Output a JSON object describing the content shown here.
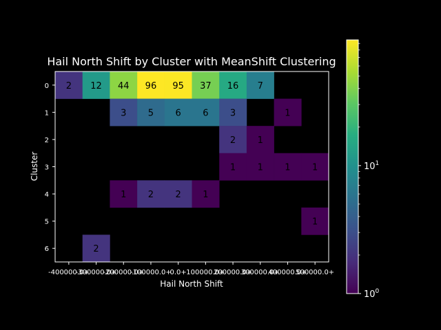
{
  "chart_data": {
    "type": "heatmap",
    "title": "Hail North Shift by Cluster with MeanShift Clustering",
    "xlabel": "Hail North Shift",
    "ylabel": "Cluster",
    "x_tick_labels": [
      "-400000.0+",
      "-300000.0+",
      "-200000.0+",
      "-100000.0+",
      "0.0+",
      "100000.0+",
      "200000.0+",
      "300000.0+",
      "400000.0+",
      "500000.0+"
    ],
    "y_tick_labels": [
      "0",
      "1",
      "2",
      "3",
      "4",
      "5",
      "6"
    ],
    "values": [
      [
        2,
        12,
        44,
        96,
        95,
        37,
        16,
        7,
        null,
        null
      ],
      [
        null,
        null,
        3,
        5,
        6,
        6,
        3,
        null,
        1,
        null
      ],
      [
        null,
        null,
        null,
        null,
        null,
        null,
        2,
        1,
        null,
        null
      ],
      [
        null,
        null,
        null,
        null,
        null,
        null,
        1,
        1,
        1,
        1
      ],
      [
        null,
        null,
        1,
        2,
        2,
        1,
        null,
        null,
        null,
        null
      ],
      [
        null,
        null,
        null,
        null,
        null,
        null,
        null,
        null,
        null,
        1
      ],
      [
        null,
        2,
        null,
        null,
        null,
        null,
        null,
        null,
        null,
        null
      ]
    ],
    "colorbar": {
      "scale": "log",
      "colormap": "viridis",
      "range": [
        1,
        96
      ],
      "tick_labels": [
        "10^0",
        "10^1"
      ]
    },
    "grid": false,
    "background": "#000000"
  }
}
